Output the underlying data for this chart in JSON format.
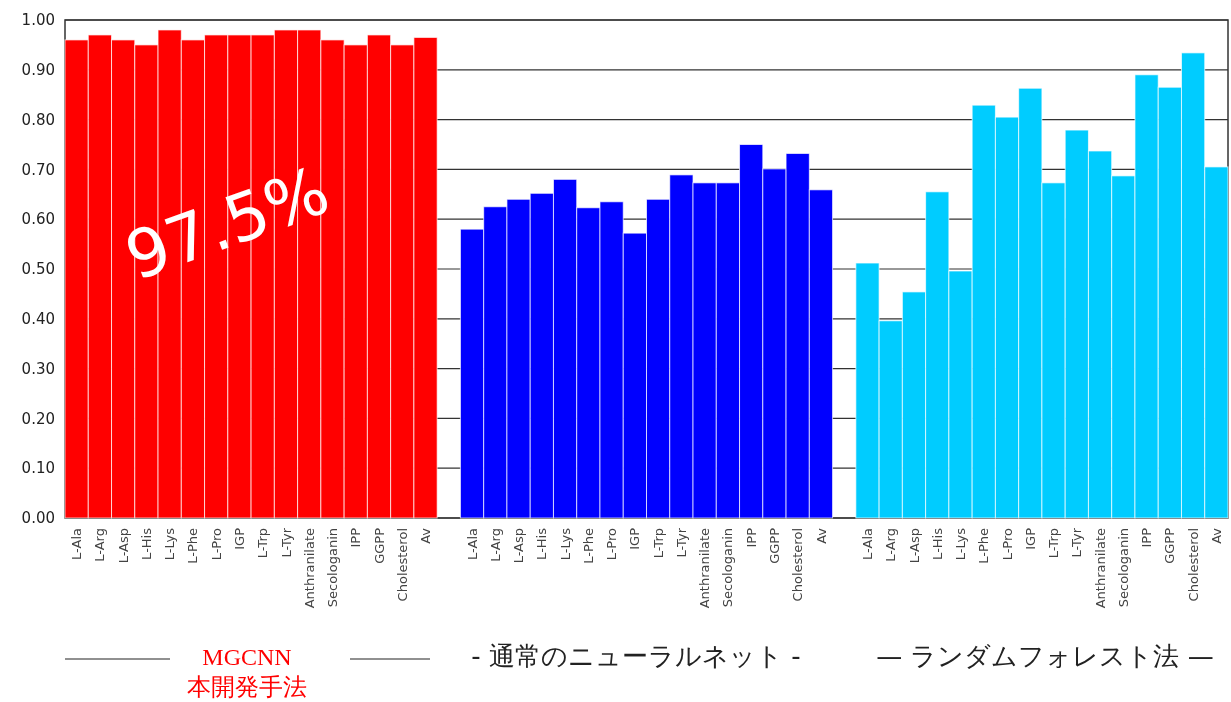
{
  "chart_data": {
    "type": "bar",
    "categories": [
      "L-Ala",
      "L-Arg",
      "L-Asp",
      "L-His",
      "L-Lys",
      "L-Phe",
      "L-Pro",
      "IGP",
      "L-Trp",
      "L-Tyr",
      "Anthranilate",
      "Secologanin",
      "IPP",
      "GGPP",
      "Cholesterol",
      "Av",
      null,
      "L-Ala",
      "L-Arg",
      "L-Asp",
      "L-His",
      "L-Lys",
      "L-Phe",
      "L-Pro",
      "IGP",
      "L-Trp",
      "L-Tyr",
      "Anthranilate",
      "Secologanin",
      "IPP",
      "GGPP",
      "Cholesterol",
      "Av",
      null,
      "L-Ala",
      "L-Arg",
      "L-Asp",
      "L-His",
      "L-Lys",
      "L-Phe",
      "L-Pro",
      "IGP",
      "L-Trp",
      "L-Tyr",
      "Anthranilate",
      "Secologanin",
      "IPP",
      "GGPP",
      "Cholesterol",
      "Av"
    ],
    "values": [
      0.96,
      0.97,
      0.96,
      0.95,
      0.98,
      0.96,
      0.97,
      0.97,
      0.97,
      0.98,
      0.98,
      0.96,
      0.95,
      0.97,
      0.95,
      0.965,
      null,
      0.58,
      0.625,
      0.64,
      0.652,
      0.68,
      0.623,
      0.635,
      0.572,
      0.64,
      0.689,
      0.673,
      0.673,
      0.75,
      0.701,
      0.732,
      0.659,
      null,
      0.512,
      0.396,
      0.454,
      0.655,
      0.496,
      0.829,
      0.805,
      0.863,
      0.673,
      0.779,
      0.737,
      0.687,
      0.89,
      0.865,
      0.934,
      0.705
    ],
    "colors": [
      "#ff0000",
      "#ff0000",
      "#ff0000",
      "#ff0000",
      "#ff0000",
      "#ff0000",
      "#ff0000",
      "#ff0000",
      "#ff0000",
      "#ff0000",
      "#ff0000",
      "#ff0000",
      "#ff0000",
      "#ff0000",
      "#ff0000",
      "#ff0000",
      null,
      "#0000ff",
      "#0000ff",
      "#0000ff",
      "#0000ff",
      "#0000ff",
      "#0000ff",
      "#0000ff",
      "#0000ff",
      "#0000ff",
      "#0000ff",
      "#0000ff",
      "#0000ff",
      "#0000ff",
      "#0000ff",
      "#0000ff",
      "#0000ff",
      null,
      "#00ccff",
      "#00ccff",
      "#00ccff",
      "#00ccff",
      "#00ccff",
      "#00ccff",
      "#00ccff",
      "#00ccff",
      "#00ccff",
      "#00ccff",
      "#00ccff",
      "#00ccff",
      "#00ccff",
      "#00ccff",
      "#00ccff",
      "#00ccff"
    ],
    "ylim": [
      0,
      1
    ],
    "yticks": [
      {
        "value": 0,
        "label": "0.00"
      },
      {
        "value": 0.1,
        "label": "0.10"
      },
      {
        "value": 0.2,
        "label": "0.20"
      },
      {
        "value": 0.3,
        "label": "0.30"
      },
      {
        "value": 0.4,
        "label": "0.40"
      },
      {
        "value": 0.5,
        "label": "0.50"
      },
      {
        "value": 0.6,
        "label": "0.60"
      },
      {
        "value": 0.7,
        "label": "0.70"
      },
      {
        "value": 0.8,
        "label": "0.80"
      },
      {
        "value": 0.9,
        "label": "0.90"
      },
      {
        "value": 1,
        "label": "1.00"
      }
    ],
    "grid": "y",
    "annotations": [
      "97.5%",
      "MGCNN",
      "本開発手法",
      "- 通常のニューラルネット -",
      "— ランダムフォレスト法 —"
    ]
  }
}
